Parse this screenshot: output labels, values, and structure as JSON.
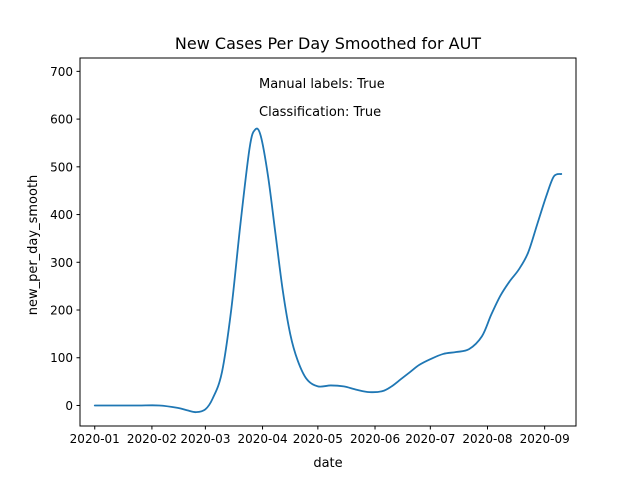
{
  "chart_data": {
    "type": "line",
    "title": "New Cases Per Day Smoothed for AUT",
    "xlabel": "date",
    "ylabel": "new_per_day_smooth",
    "ylim": [
      -43,
      728
    ],
    "xlim": [
      "2019-12-24",
      "2020-09-18"
    ],
    "y_ticks": [
      0,
      100,
      200,
      300,
      400,
      500,
      600,
      700
    ],
    "x_ticks": [
      "2020-01",
      "2020-02",
      "2020-03",
      "2020-04",
      "2020-05",
      "2020-06",
      "2020-07",
      "2020-08",
      "2020-09"
    ],
    "grid": false,
    "series_color": "#1f77b4",
    "annotations": [
      {
        "text": "Manual labels: True"
      },
      {
        "text": "Classification: True"
      }
    ],
    "x": [
      "2020-01-01",
      "2020-01-15",
      "2020-01-25",
      "2020-02-05",
      "2020-02-15",
      "2020-02-20",
      "2020-02-25",
      "2020-03-01",
      "2020-03-05",
      "2020-03-10",
      "2020-03-15",
      "2020-03-20",
      "2020-03-25",
      "2020-03-28",
      "2020-03-31",
      "2020-04-04",
      "2020-04-08",
      "2020-04-12",
      "2020-04-16",
      "2020-04-20",
      "2020-04-25",
      "2020-05-01",
      "2020-05-08",
      "2020-05-15",
      "2020-05-22",
      "2020-05-29",
      "2020-06-05",
      "2020-06-10",
      "2020-06-15",
      "2020-06-20",
      "2020-06-25",
      "2020-07-01",
      "2020-07-08",
      "2020-07-15",
      "2020-07-22",
      "2020-07-29",
      "2020-08-03",
      "2020-08-08",
      "2020-08-13",
      "2020-08-18",
      "2020-08-23",
      "2020-08-28",
      "2020-09-02",
      "2020-09-06",
      "2020-09-10"
    ],
    "y": [
      0,
      0,
      0,
      0,
      -5,
      -10,
      -14,
      -8,
      15,
      70,
      200,
      380,
      540,
      578,
      565,
      480,
      360,
      240,
      150,
      95,
      55,
      40,
      42,
      40,
      33,
      28,
      30,
      40,
      55,
      70,
      85,
      97,
      108,
      112,
      118,
      145,
      190,
      230,
      260,
      285,
      320,
      380,
      440,
      480,
      485
    ]
  }
}
